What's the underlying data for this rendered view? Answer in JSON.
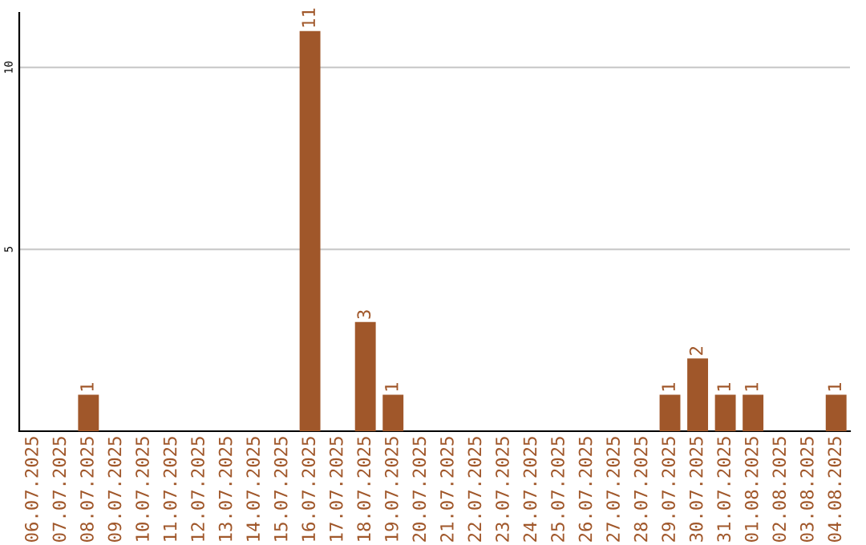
{
  "chart_data": {
    "type": "bar",
    "categories": [
      "06.07.2025",
      "07.07.2025",
      "08.07.2025",
      "09.07.2025",
      "10.07.2025",
      "11.07.2025",
      "12.07.2025",
      "13.07.2025",
      "14.07.2025",
      "15.07.2025",
      "16.07.2025",
      "17.07.2025",
      "18.07.2025",
      "19.07.2025",
      "20.07.2025",
      "21.07.2025",
      "22.07.2025",
      "23.07.2025",
      "24.07.2025",
      "25.07.2025",
      "26.07.2025",
      "27.07.2025",
      "28.07.2025",
      "29.07.2025",
      "30.07.2025",
      "31.07.2025",
      "01.08.2025",
      "02.08.2025",
      "03.08.2025",
      "04.08.2025"
    ],
    "values": [
      0,
      0,
      1,
      0,
      0,
      0,
      0,
      0,
      0,
      0,
      11,
      0,
      3,
      1,
      0,
      0,
      0,
      0,
      0,
      0,
      0,
      0,
      0,
      1,
      2,
      1,
      1,
      0,
      0,
      1
    ],
    "value_labels": [
      null,
      null,
      "1",
      null,
      null,
      null,
      null,
      null,
      null,
      null,
      "11",
      null,
      "3",
      "1",
      null,
      null,
      null,
      null,
      null,
      null,
      null,
      null,
      null,
      "1",
      "2",
      "1",
      "1",
      null,
      null,
      "1"
    ],
    "color": "#a0572a",
    "ylim": [
      0,
      11.5
    ],
    "yticks": [
      5,
      10
    ],
    "grid": "y"
  }
}
